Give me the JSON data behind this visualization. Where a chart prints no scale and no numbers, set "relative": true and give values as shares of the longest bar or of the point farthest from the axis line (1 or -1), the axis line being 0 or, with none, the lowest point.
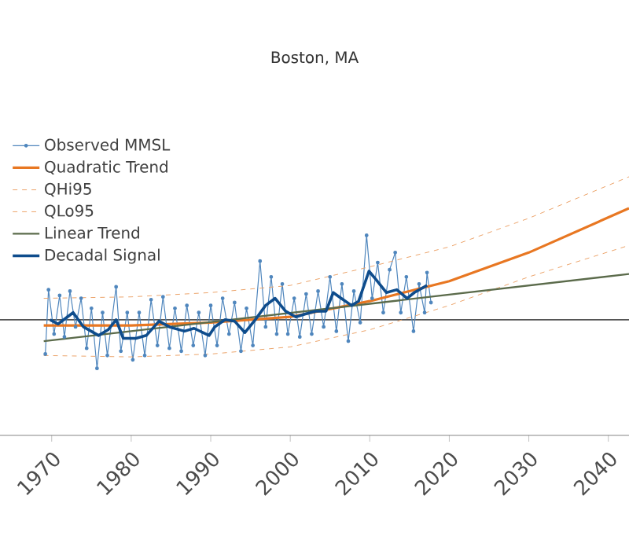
{
  "chart_data": {
    "type": "line",
    "title": "Boston, MA",
    "relative": true,
    "xlim": [
      1963.5,
      2042.6
    ],
    "xticks": [
      1970,
      1980,
      1990,
      2000,
      2010,
      2020,
      2030,
      2040
    ],
    "legend": "top left",
    "grid": false,
    "ref_lines": [
      {
        "axis": "y",
        "value": 0,
        "color": "#555555"
      }
    ],
    "series": [
      {
        "name": "Observed MMSL",
        "color": "#4f86bd",
        "marker": "circle",
        "x": [
          1969.2,
          1969.6,
          1970.3,
          1971.0,
          1971.6,
          1972.3,
          1973.0,
          1973.7,
          1974.4,
          1975.0,
          1975.7,
          1976.4,
          1977.0,
          1978.1,
          1978.7,
          1979.5,
          1980.2,
          1981.0,
          1981.7,
          1982.5,
          1983.3,
          1984.0,
          1984.8,
          1985.5,
          1986.3,
          1987.0,
          1987.8,
          1988.5,
          1989.3,
          1990.0,
          1990.8,
          1991.5,
          1992.3,
          1993.0,
          1993.8,
          1994.5,
          1995.3,
          1996.2,
          1996.9,
          1997.6,
          1998.3,
          1999.0,
          1999.7,
          2000.5,
          2001.2,
          2002.0,
          2002.7,
          2003.5,
          2004.2,
          2005.0,
          2005.8,
          2006.5,
          2007.3,
          2008.0,
          2008.8,
          2009.6,
          2010.3,
          2011.0,
          2011.7,
          2012.5,
          2013.2,
          2013.9,
          2014.6,
          2015.5,
          2016.2,
          2016.9,
          2017.2,
          2017.7
        ],
        "values": [
          -0.24,
          0.21,
          -0.1,
          0.17,
          -0.12,
          0.2,
          -0.05,
          0.15,
          -0.2,
          0.08,
          -0.34,
          0.05,
          -0.25,
          0.23,
          -0.22,
          0.05,
          -0.28,
          0.05,
          -0.25,
          0.14,
          -0.18,
          0.16,
          -0.2,
          0.08,
          -0.22,
          0.1,
          -0.18,
          0.05,
          -0.25,
          0.1,
          -0.18,
          0.15,
          -0.1,
          0.12,
          -0.22,
          0.08,
          -0.18,
          0.41,
          -0.05,
          0.3,
          -0.1,
          0.25,
          -0.1,
          0.15,
          -0.12,
          0.18,
          -0.1,
          0.2,
          -0.05,
          0.3,
          -0.08,
          0.25,
          -0.15,
          0.2,
          -0.02,
          0.59,
          0.15,
          0.4,
          0.05,
          0.35,
          0.47,
          0.05,
          0.3,
          -0.08,
          0.25,
          0.05,
          0.33,
          0.12
        ]
      },
      {
        "name": "Quadratic Trend",
        "color": "#e87722",
        "x": [
          1969,
          1980,
          1990,
          2000,
          2010,
          2020,
          2030,
          2042.6
        ],
        "values": [
          -0.04,
          -0.04,
          -0.02,
          0.02,
          0.13,
          0.27,
          0.47,
          0.78
        ]
      },
      {
        "name": "QHi95",
        "color": "#eca46a",
        "line_style": "dashed",
        "x": [
          1969,
          1980,
          1990,
          2000,
          2010,
          2020,
          2030,
          2042.6
        ],
        "values": [
          0.15,
          0.16,
          0.19,
          0.24,
          0.37,
          0.51,
          0.71,
          1.0
        ]
      },
      {
        "name": "QLo95",
        "color": "#eca46a",
        "line_style": "dashed",
        "x": [
          1969,
          1980,
          1990,
          2000,
          2010,
          2020,
          2030,
          2042.6
        ],
        "values": [
          -0.25,
          -0.26,
          -0.24,
          -0.19,
          -0.07,
          0.1,
          0.3,
          0.52
        ]
      },
      {
        "name": "Linear Trend",
        "color": "#5b6b4b",
        "x": [
          1969,
          2042.6
        ],
        "values": [
          -0.15,
          0.32
        ]
      },
      {
        "name": "Decadal Signal",
        "color": "#0e4c8c",
        "x": [
          1969.8,
          1970.8,
          1972.7,
          1974.0,
          1975.9,
          1977.1,
          1978.1,
          1979.0,
          1980.6,
          1981.9,
          1983.5,
          1984.8,
          1986.7,
          1987.9,
          1989.8,
          1990.5,
          1991.8,
          1993.0,
          1994.3,
          1995.6,
          1996.9,
          1998.1,
          1999.4,
          2000.7,
          2001.9,
          2003.2,
          2004.5,
          2005.4,
          2006.4,
          2007.7,
          2008.6,
          2009.9,
          2010.8,
          2012.1,
          2013.4,
          2014.7,
          2015.6,
          2017.2
        ],
        "values": [
          0.0,
          -0.03,
          0.05,
          -0.05,
          -0.11,
          -0.07,
          0.0,
          -0.13,
          -0.13,
          -0.11,
          -0.01,
          -0.05,
          -0.08,
          -0.06,
          -0.11,
          -0.05,
          0.0,
          -0.01,
          -0.09,
          0.0,
          0.1,
          0.15,
          0.06,
          0.02,
          0.04,
          0.06,
          0.06,
          0.19,
          0.15,
          0.1,
          0.13,
          0.34,
          0.28,
          0.19,
          0.21,
          0.15,
          0.19,
          0.24
        ]
      }
    ]
  }
}
